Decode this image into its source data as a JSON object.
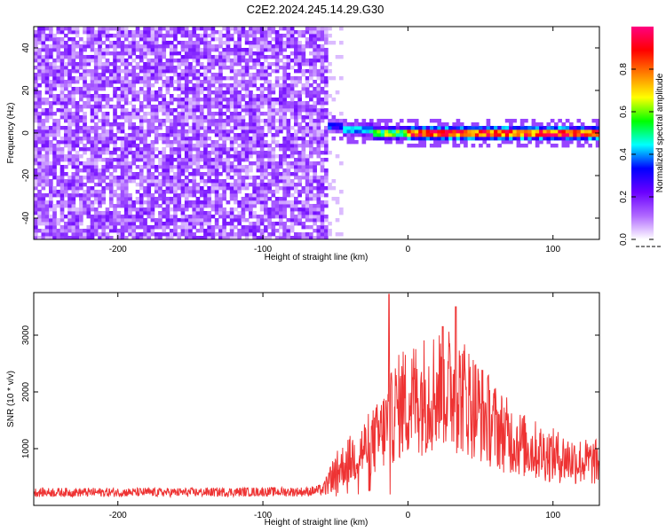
{
  "title": "C2E2.2024.245.14.29.G30",
  "chart_data": [
    {
      "type": "heatmap",
      "xlabel": "Height of straight line (km)",
      "ylabel": "Frequency (Hz)",
      "xlim": [
        -258,
        132
      ],
      "ylim": [
        -50,
        50
      ],
      "x_ticks": [
        -200,
        -100,
        0,
        100
      ],
      "y_ticks": [
        -40,
        -20,
        0,
        20,
        40
      ],
      "colorbar": {
        "label": "Normalized spectral amplitude",
        "range": [
          0,
          1
        ],
        "ticks": [
          "0.0",
          "0.2",
          "0.4",
          "0.6",
          "0.8"
        ],
        "colors": [
          "#ffffff",
          "#b068ff",
          "#6a00ff",
          "#0000ff",
          "#00ffff",
          "#00ff00",
          "#ffff00",
          "#ff8000",
          "#ff0000",
          "#ff0080"
        ]
      },
      "features": {
        "noise_region_x": [
          -258,
          -55
        ],
        "noise_amplitude": 0.15,
        "carrier_frequency_hz": 0,
        "carrier_segments": [
          {
            "x": [
              -55,
              -45
            ],
            "y": 3,
            "amplitude": 0.35
          },
          {
            "x": [
              -45,
              -25
            ],
            "y": 1.5,
            "amplitude": 0.45
          },
          {
            "x": [
              -25,
              0
            ],
            "y": 0.5,
            "amplitude": 0.6
          },
          {
            "x": [
              0,
              132
            ],
            "y": 0,
            "amplitude": 0.9
          }
        ]
      }
    },
    {
      "type": "line",
      "xlabel": "Height of straight line (km)",
      "ylabel": "SNR (10 * v/v)",
      "xlim": [
        -258,
        132
      ],
      "ylim": [
        0,
        3750
      ],
      "x_ticks": [
        -200,
        -100,
        0,
        100
      ],
      "y_ticks": [
        1000,
        2000,
        3000
      ],
      "color": "#ee3333",
      "envelope": [
        [
          -258,
          230
        ],
        [
          -200,
          230
        ],
        [
          -150,
          230
        ],
        [
          -100,
          240
        ],
        [
          -70,
          240
        ],
        [
          -58,
          280
        ],
        [
          -50,
          600
        ],
        [
          -40,
          800
        ],
        [
          -30,
          1000
        ],
        [
          -20,
          1200
        ],
        [
          -12,
          1500
        ],
        [
          -8,
          1700
        ],
        [
          0,
          1850
        ],
        [
          10,
          1950
        ],
        [
          20,
          2050
        ],
        [
          30,
          2050
        ],
        [
          40,
          1900
        ],
        [
          50,
          1650
        ],
        [
          60,
          1400
        ],
        [
          70,
          1200
        ],
        [
          80,
          1050
        ],
        [
          90,
          950
        ],
        [
          100,
          880
        ],
        [
          110,
          820
        ],
        [
          120,
          770
        ],
        [
          132,
          750
        ]
      ],
      "peaks": [
        [
          -13,
          3720
        ],
        [
          24,
          3150
        ],
        [
          33,
          3500
        ]
      ]
    }
  ]
}
